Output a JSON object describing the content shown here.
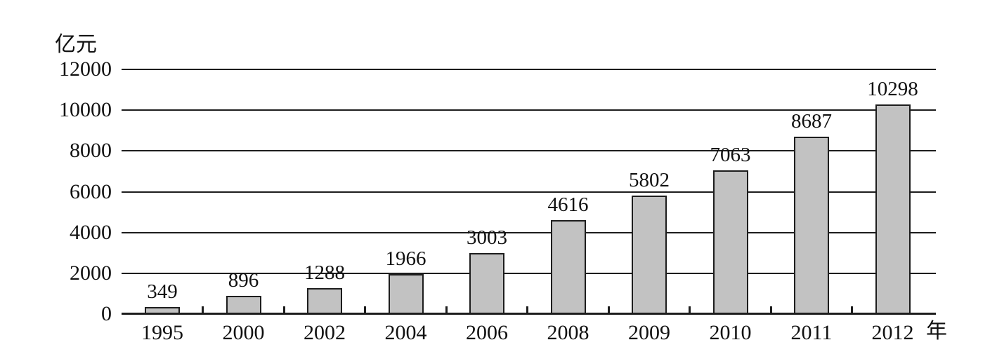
{
  "chart_data": {
    "type": "bar",
    "title": "",
    "categories": [
      "1995",
      "2000",
      "2002",
      "2004",
      "2006",
      "2008",
      "2009",
      "2010",
      "2011",
      "2012"
    ],
    "values": [
      349,
      896,
      1288,
      1966,
      3003,
      4616,
      5802,
      7063,
      8687,
      10298
    ],
    "bar_value_labels": [
      "349",
      "896",
      "1288",
      "1966",
      "3003",
      "4616",
      "5802",
      "7063",
      "8687",
      "10298"
    ],
    "y_axis": {
      "unit_label": "亿元",
      "ticks": [
        0,
        2000,
        4000,
        6000,
        8000,
        10000,
        12000
      ],
      "tick_labels": [
        "0",
        "2000",
        "4000",
        "6000",
        "8000",
        "10000",
        "12000"
      ],
      "min": 0,
      "max": 12000
    },
    "x_axis": {
      "unit_label": "年"
    },
    "grid": true,
    "legend": null,
    "layout": {
      "bar_labels_position": "above-bars",
      "tick_marks": "between-bars"
    },
    "colors": {
      "bar_fill": "#c2c2c2",
      "bar_border": "#1d1d1d",
      "line": "#1d1d1d",
      "text": "#111111",
      "background": "#ffffff"
    }
  }
}
